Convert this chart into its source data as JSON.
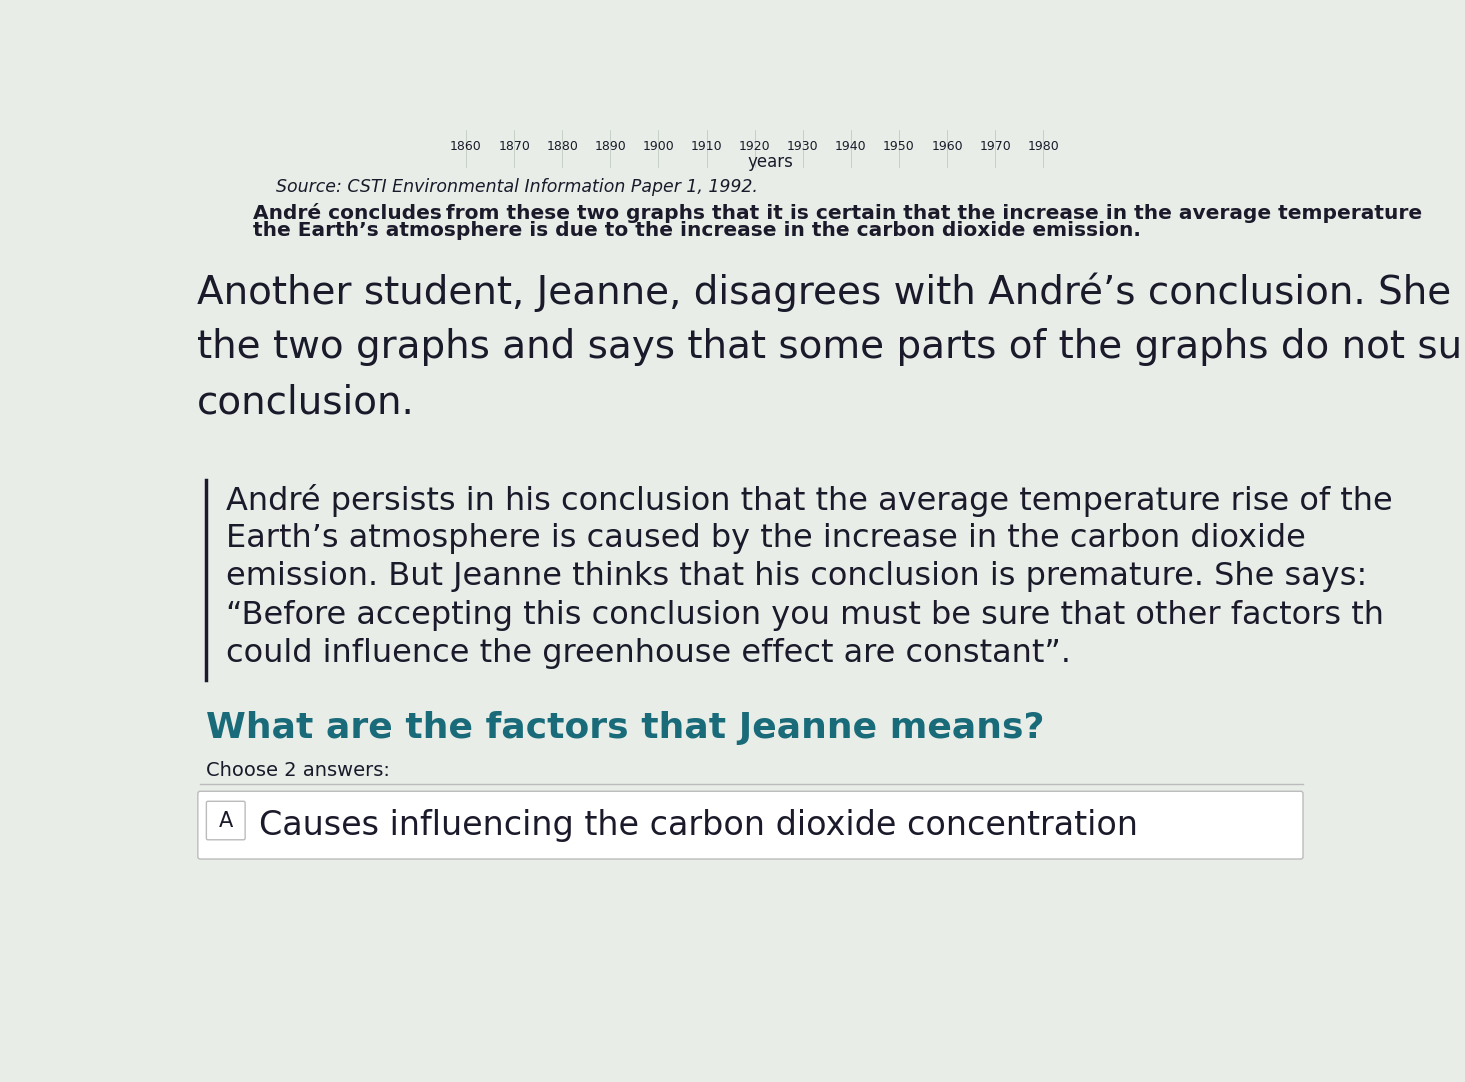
{
  "background_color": "#e8ede8",
  "years_label": "years",
  "year_ticks": [
    "1860",
    "1870",
    "1880",
    "1890",
    "1900",
    "1910",
    "1920",
    "1930",
    "1940",
    "1950",
    "1960",
    "1970",
    "1980"
  ],
  "source_text": "Source: CSTI Environmental Information Paper 1, 1992.",
  "p1_line1": "André concludes from these two graphs that it is certain that the increase in the average temperature",
  "p1_line2": "the Earth’s atmosphere is due to the increase in the carbon dioxide emission.",
  "p2_line1": "Another student, Jeanne, disagrees with André’s conclusion. She compar",
  "p2_line2": "the two graphs and says that some parts of the graphs do not support h",
  "p2_line3": "conclusion.",
  "p3_line1": "André persists in his conclusion that the average temperature rise of the",
  "p3_line2": "Earth’s atmosphere is caused by the increase in the carbon dioxide",
  "p3_line3": "emission. But Jeanne thinks that his conclusion is premature. She says:",
  "p3_line4": "“Before accepting this conclusion you must be sure that other factors th",
  "p3_line5": "could influence the greenhouse effect are constant”.",
  "question": "What are the factors that Jeanne means?",
  "choose_text": "Choose 2 answers:",
  "answer_A": "Causes influencing the carbon dioxide concentration",
  "answer_label": "A",
  "text_color": "#1a1a2a",
  "teal_color": "#1a6b7a",
  "source_fontsize": 12.5,
  "p1_fontsize": 14.5,
  "p2_fontsize": 28,
  "p3_fontsize": 23,
  "question_fontsize": 26,
  "choose_fontsize": 14,
  "answer_fontsize": 24,
  "answer_border_color": "#bbbbbb",
  "divider_color": "#bbbbbb",
  "tick_fontsize": 9,
  "years_fontsize": 12
}
